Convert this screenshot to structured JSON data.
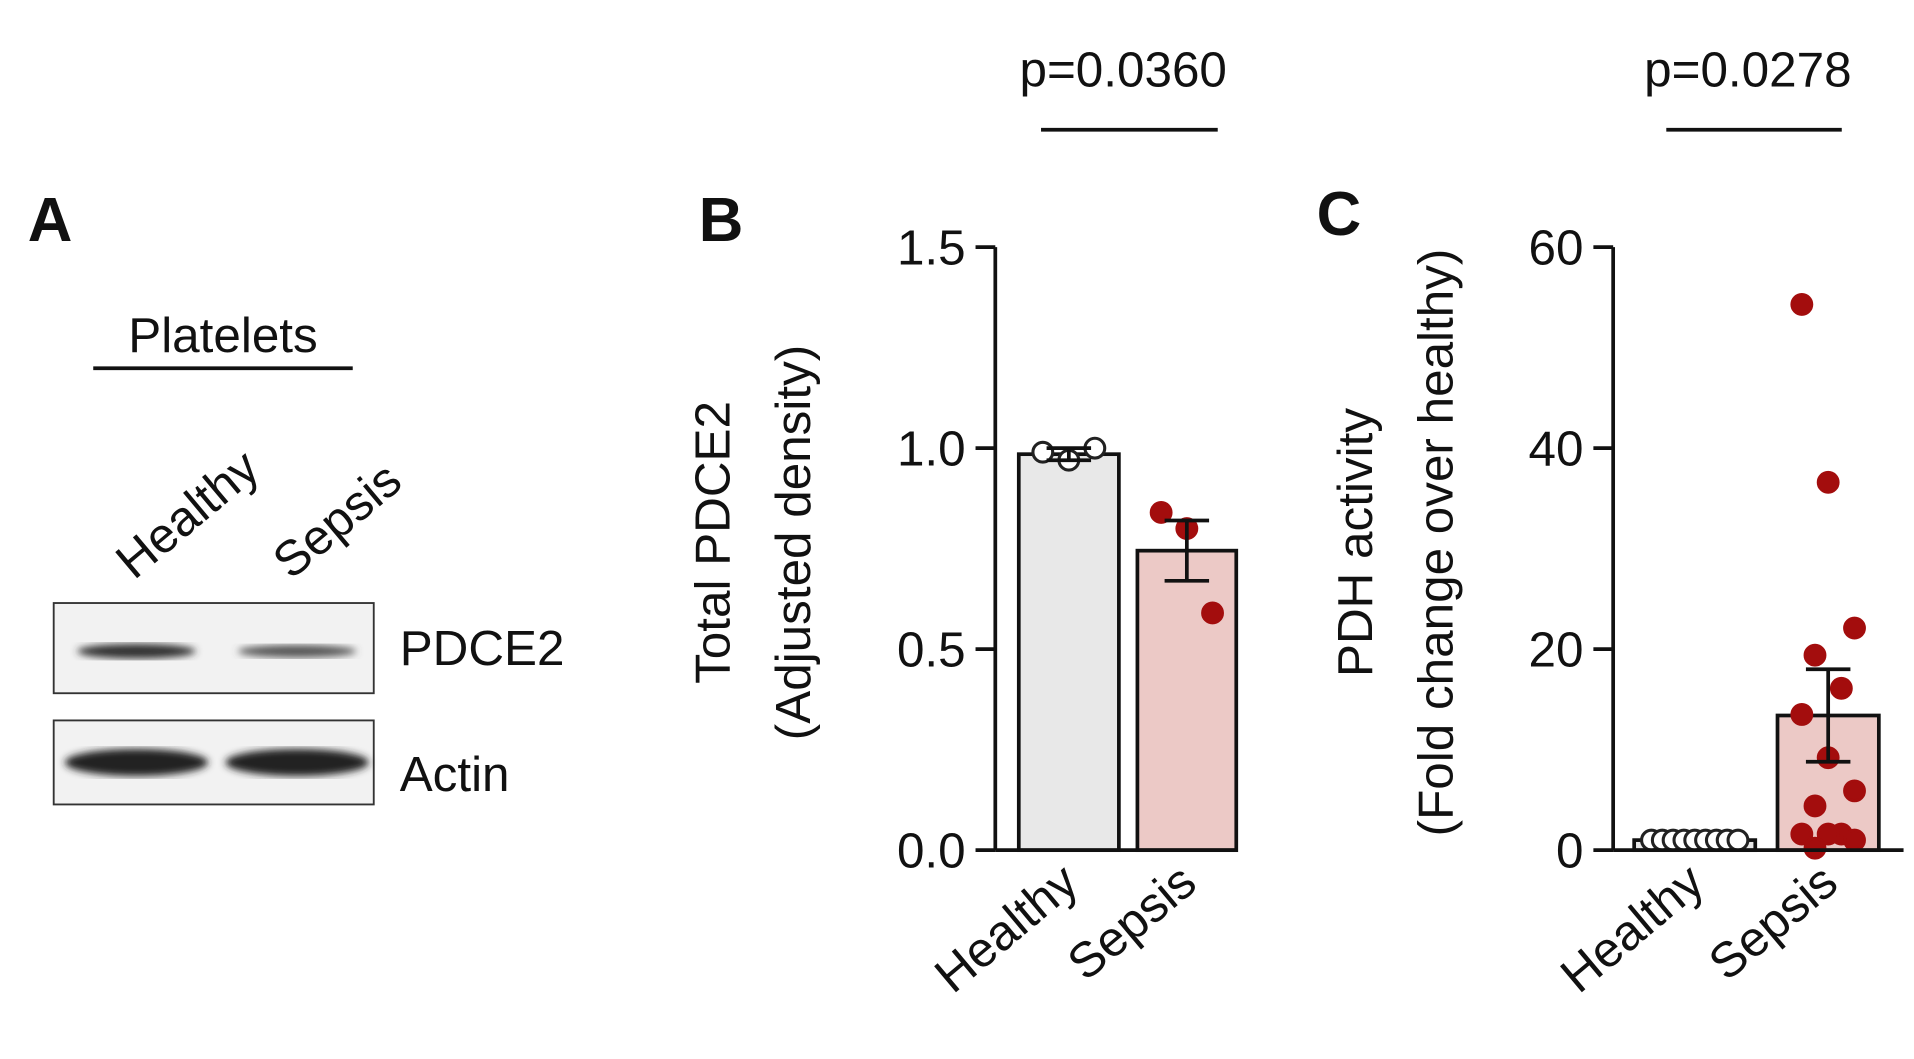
{
  "blot": {
    "label": "A",
    "group": "Platelets",
    "lanes": [
      "Healthy",
      "Sepsis"
    ],
    "rows": [
      "PDCE2",
      "Actin"
    ]
  },
  "chart_data": [
    {
      "type": "bar",
      "label": "B",
      "ylabel": [
        "Total PDCE2",
        "(Adjusted density)"
      ],
      "annotation": "p=0.0360",
      "categories": [
        "Healthy",
        "Sepsis"
      ],
      "values": [
        0.985,
        0.745
      ],
      "errors": [
        0.015,
        0.075
      ],
      "points": [
        [
          0.99,
          0.97,
          1.0
        ],
        [
          0.84,
          0.8,
          0.59
        ]
      ],
      "colors": [
        "#e8e8e8",
        "#ecc9c6"
      ],
      "point_fill": [
        "#ffffff",
        "#a30d0d"
      ],
      "point_edge": [
        "#222222",
        "#a30d0d"
      ],
      "ylim": [
        0,
        1.5
      ],
      "yticks": [
        {
          "value": 0,
          "label": "0.0"
        },
        0.5,
        {
          "value": 1,
          "label": "1.0"
        },
        1.5
      ]
    },
    {
      "type": "bar",
      "label": "C",
      "ylabel": [
        "PDH activity",
        "(Fold change over healthy)"
      ],
      "annotation": "p=0.0278",
      "categories": [
        "Healthy",
        "Sepsis"
      ],
      "values": [
        1,
        13.4
      ],
      "errors": [
        0,
        4.6
      ],
      "points": [
        [
          1,
          1,
          1,
          1,
          1,
          1,
          1,
          1,
          1
        ],
        [
          54.3,
          36.6,
          22.1,
          19.4,
          16.1,
          13.5,
          9.2,
          5.9,
          4.4,
          1.6,
          1.6,
          1.6,
          1,
          0.2
        ]
      ],
      "colors": [
        "#e8e8e8",
        "#ecc9c6"
      ],
      "point_fill": [
        "#ffffff",
        "#a30d0d"
      ],
      "point_edge": [
        "#222222",
        "#a30d0d"
      ],
      "ylim": [
        0,
        60
      ],
      "yticks": [
        0,
        20,
        40,
        60
      ]
    }
  ]
}
